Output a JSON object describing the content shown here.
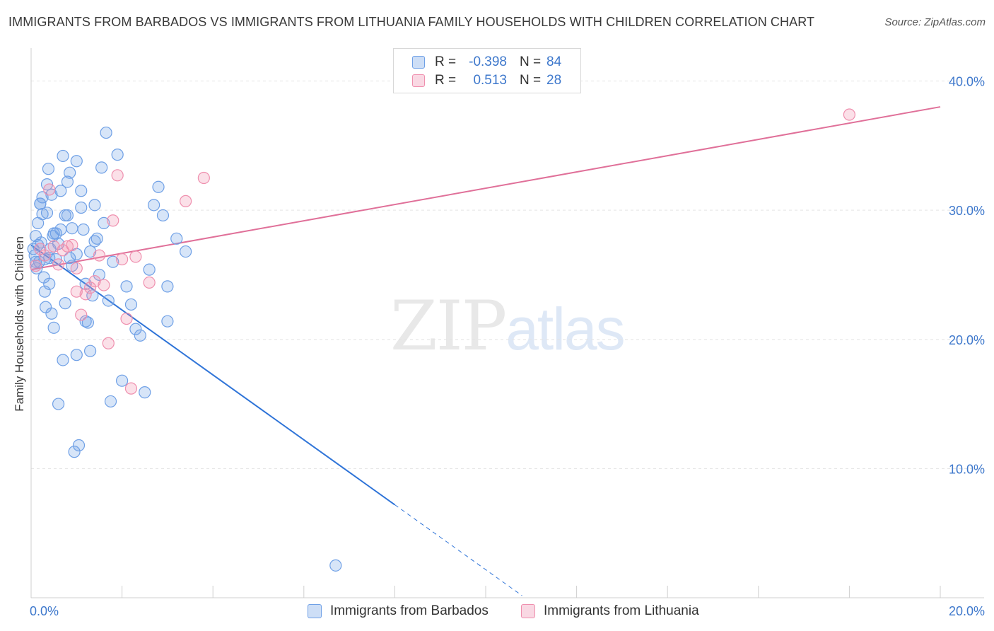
{
  "chart_data": {
    "type": "scatter",
    "title": "IMMIGRANTS FROM BARBADOS VS IMMIGRANTS FROM LITHUANIA FAMILY HOUSEHOLDS WITH CHILDREN CORRELATION CHART",
    "source": "Source: ZipAtlas.com",
    "xlabel": "",
    "ylabel": "Family Households with Children",
    "xlim": [
      0,
      20
    ],
    "ylim": [
      0,
      42
    ],
    "x_tick_labels": [
      "0.0%",
      "20.0%"
    ],
    "y_ticks": [
      10,
      20,
      30,
      40
    ],
    "y_tick_labels": [
      "10.0%",
      "20.0%",
      "30.0%",
      "40.0%"
    ],
    "grid": true,
    "watermark": {
      "zip": "ZIP",
      "atlas": "atlas"
    },
    "legend": {
      "r_label": "R =",
      "n_label": "N =",
      "entries": [
        {
          "name": "Immigrants from Barbados",
          "r": "-0.398",
          "n": "84",
          "color": "#6fa0e6"
        },
        {
          "name": "Immigrants from Lithuania",
          "r": "0.513",
          "n": "28",
          "color": "#ef8fae"
        }
      ]
    },
    "series": [
      {
        "name": "Immigrants from Barbados",
        "color": "#6fa0e6",
        "line_color": "#2f74d8",
        "trend": {
          "x0": 0,
          "y0": 27.3,
          "x1": 8.0,
          "y1": 7.2,
          "dash_to_x": 10.8
        },
        "x": [
          0.05,
          0.08,
          0.1,
          0.12,
          0.15,
          0.18,
          0.2,
          0.22,
          0.25,
          0.28,
          0.3,
          0.32,
          0.35,
          0.38,
          0.4,
          0.42,
          0.45,
          0.48,
          0.5,
          0.55,
          0.6,
          0.65,
          0.7,
          0.75,
          0.8,
          0.85,
          0.9,
          0.95,
          1.0,
          1.05,
          1.1,
          1.15,
          1.2,
          1.25,
          1.3,
          1.35,
          1.4,
          1.45,
          1.5,
          1.55,
          1.6,
          1.65,
          1.7,
          1.75,
          1.8,
          1.9,
          2.0,
          2.1,
          2.2,
          2.3,
          2.4,
          2.5,
          2.6,
          2.7,
          2.8,
          2.9,
          3.0,
          3.2,
          3.4,
          0.1,
          0.2,
          0.3,
          0.4,
          0.5,
          0.6,
          0.7,
          0.8,
          0.9,
          1.0,
          1.1,
          1.2,
          1.3,
          1.4,
          0.15,
          0.25,
          0.35,
          0.45,
          0.55,
          0.65,
          0.75,
          0.85,
          1.0,
          6.7,
          3.0
        ],
        "y": [
          27.0,
          26.5,
          28.0,
          25.5,
          29.0,
          26.0,
          30.5,
          27.5,
          31.0,
          24.8,
          26.2,
          22.5,
          29.8,
          33.2,
          24.3,
          27.0,
          31.2,
          28.0,
          20.9,
          26.2,
          15.0,
          28.5,
          18.4,
          22.8,
          29.6,
          26.3,
          28.6,
          11.3,
          18.8,
          11.8,
          31.5,
          28.5,
          24.3,
          21.3,
          19.1,
          23.4,
          30.4,
          27.8,
          25.0,
          33.3,
          29.0,
          36.0,
          23.0,
          15.2,
          26.0,
          34.3,
          16.8,
          24.1,
          22.7,
          20.8,
          20.3,
          15.9,
          25.4,
          30.4,
          31.8,
          29.6,
          21.4,
          27.8,
          26.8,
          26.0,
          30.5,
          23.7,
          26.3,
          28.2,
          27.4,
          34.2,
          32.2,
          25.7,
          33.8,
          30.2,
          21.4,
          26.8,
          27.6,
          27.3,
          29.7,
          32.0,
          22.0,
          28.2,
          31.5,
          29.6,
          32.9,
          26.6,
          2.5,
          24.1
        ]
      },
      {
        "name": "Immigrants from Lithuania",
        "color": "#ef8fae",
        "line_color": "#e07099",
        "trend": {
          "x0": 0,
          "y0": 25.4,
          "x1": 20,
          "y1": 38.0
        },
        "x": [
          0.1,
          0.2,
          0.3,
          0.4,
          0.5,
          0.6,
          0.7,
          0.8,
          0.9,
          1.0,
          1.1,
          1.2,
          1.3,
          1.4,
          1.5,
          1.6,
          1.7,
          1.8,
          1.9,
          2.0,
          2.1,
          2.2,
          2.3,
          2.6,
          3.4,
          3.8,
          18.0,
          1.0
        ],
        "y": [
          25.7,
          27.0,
          26.5,
          31.6,
          27.2,
          25.8,
          26.9,
          27.2,
          27.3,
          23.7,
          21.9,
          23.5,
          24.0,
          24.5,
          26.5,
          24.2,
          19.7,
          29.2,
          32.7,
          26.2,
          21.6,
          16.2,
          26.4,
          24.4,
          30.7,
          32.5,
          37.4,
          25.5
        ]
      }
    ]
  }
}
